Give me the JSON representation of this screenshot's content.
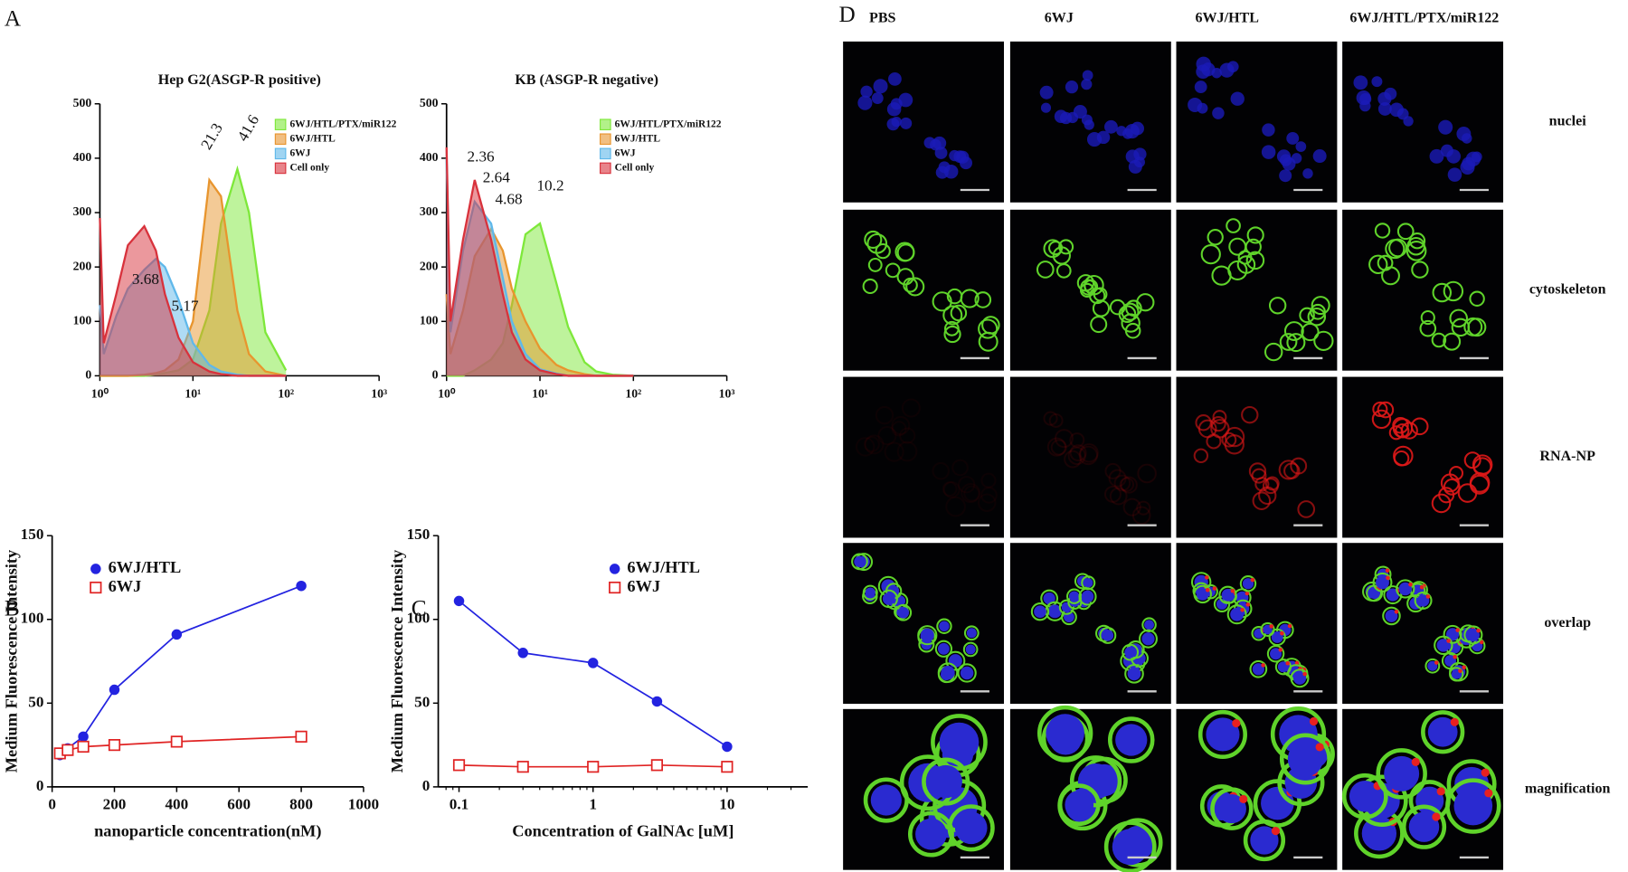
{
  "panel_labels": [
    "A",
    "B",
    "C",
    "D"
  ],
  "chart_data": [
    {
      "type": "area",
      "title": "Hep G2(ASGP-R positive)",
      "xscale": "log",
      "x": [
        1,
        1.1,
        1.5,
        2,
        3,
        4,
        5,
        7,
        10,
        15,
        20,
        30,
        40,
        60,
        100
      ],
      "xlim": [
        1,
        1000
      ],
      "xticks": [
        {
          "value": 1,
          "label": "10⁰"
        },
        {
          "value": 10,
          "label": "10¹"
        },
        {
          "value": 100,
          "label": "10²"
        },
        {
          "value": 1000,
          "label": "10³"
        }
      ],
      "ylim": [
        0,
        500
      ],
      "yticks": [
        0,
        100,
        200,
        300,
        400,
        500
      ],
      "series": [
        {
          "name": "6WJ/HTL/PTX/miR122",
          "color": "#7ee83a",
          "values": [
            0,
            0,
            0,
            0,
            0,
            2,
            5,
            10,
            30,
            120,
            280,
            380,
            300,
            80,
            10
          ]
        },
        {
          "name": "6WJ/HTL",
          "color": "#e8952e",
          "values": [
            0,
            0,
            0,
            0,
            2,
            5,
            10,
            30,
            100,
            360,
            330,
            120,
            40,
            8,
            0
          ]
        },
        {
          "name": "6WJ",
          "color": "#5fb8ea",
          "values": [
            130,
            40,
            110,
            160,
            195,
            215,
            200,
            140,
            60,
            20,
            8,
            2,
            0,
            0,
            0
          ]
        },
        {
          "name": "Cell only",
          "color": "#d8323c",
          "values": [
            290,
            60,
            150,
            240,
            275,
            230,
            150,
            70,
            25,
            8,
            3,
            0,
            0,
            0,
            0
          ]
        }
      ],
      "annotations": [
        "3.68",
        "5.17",
        "21.3",
        "41.6"
      ]
    },
    {
      "type": "area",
      "title": "KB (ASGP-R negative)",
      "xscale": "log",
      "x": [
        1,
        1.1,
        1.5,
        2,
        3,
        4,
        5,
        7,
        10,
        15,
        20,
        30,
        40,
        60,
        100
      ],
      "xlim": [
        1,
        1000
      ],
      "xticks": [
        {
          "value": 1,
          "label": "10⁰"
        },
        {
          "value": 10,
          "label": "10¹"
        },
        {
          "value": 100,
          "label": "10²"
        },
        {
          "value": 1000,
          "label": "10³"
        }
      ],
      "ylim": [
        0,
        500
      ],
      "yticks": [
        0,
        100,
        200,
        300,
        400,
        500
      ],
      "series": [
        {
          "name": "6WJ/HTL/PTX/miR122",
          "color": "#7ee83a",
          "values": [
            0,
            0,
            0,
            10,
            30,
            60,
            130,
            260,
            280,
            170,
            90,
            25,
            8,
            2,
            0
          ]
        },
        {
          "name": "6WJ/HTL",
          "color": "#e8952e",
          "values": [
            150,
            40,
            120,
            220,
            270,
            230,
            160,
            100,
            50,
            20,
            10,
            3,
            0,
            0,
            0
          ]
        },
        {
          "name": "6WJ",
          "color": "#5fb8ea",
          "values": [
            400,
            80,
            230,
            320,
            280,
            180,
            100,
            40,
            12,
            4,
            0,
            0,
            0,
            0,
            0
          ]
        },
        {
          "name": "Cell only",
          "color": "#d8323c",
          "values": [
            420,
            100,
            250,
            360,
            250,
            150,
            80,
            30,
            10,
            3,
            0,
            0,
            0,
            0,
            0
          ]
        }
      ],
      "annotations": [
        "2.36",
        "2.64",
        "4.68",
        "10.2"
      ]
    },
    {
      "type": "scatter",
      "xscale": "linear",
      "x_label": "nanoparticle concentration(nM)",
      "y_label": "Medium Fluorescence Intensity",
      "x": [
        25,
        50,
        100,
        200,
        400,
        800
      ],
      "xlim": [
        0,
        1000
      ],
      "xticks": [
        0,
        200,
        400,
        600,
        800,
        1000
      ],
      "ylim": [
        0,
        150
      ],
      "yticks": [
        0,
        50,
        100,
        150
      ],
      "series": [
        {
          "name": "6WJ/HTL",
          "color": "#2323e0",
          "marker": "circle",
          "values": [
            19,
            23,
            30,
            58,
            91,
            120
          ]
        },
        {
          "name": "6WJ",
          "color": "#e02323",
          "marker": "square",
          "values": [
            20,
            22,
            24,
            25,
            27,
            30
          ]
        }
      ]
    },
    {
      "type": "scatter",
      "xscale": "log",
      "x_label": "Concentration of GalNAc [uM]",
      "y_label": "Medium Fluorescence Intensity",
      "x": [
        0.1,
        0.3,
        1,
        3,
        10
      ],
      "xlim": [
        0.07,
        40
      ],
      "xticks": [
        0.1,
        1,
        10
      ],
      "ylim": [
        0,
        150
      ],
      "yticks": [
        0,
        50,
        100,
        150
      ],
      "series": [
        {
          "name": "6WJ/HTL",
          "color": "#2323e0",
          "marker": "circle",
          "values": [
            111,
            80,
            74,
            51,
            24
          ]
        },
        {
          "name": "6WJ",
          "color": "#e02323",
          "marker": "square",
          "values": [
            13,
            12,
            12,
            13,
            12
          ]
        }
      ]
    }
  ],
  "microscopy": {
    "columns": [
      "PBS",
      "6WJ",
      "6WJ/HTL",
      "6WJ/HTL/PTX/miR122"
    ],
    "rows": [
      "nuclei",
      "cytoskeleton",
      "RNA-NP",
      "overlap",
      "magnification"
    ]
  }
}
